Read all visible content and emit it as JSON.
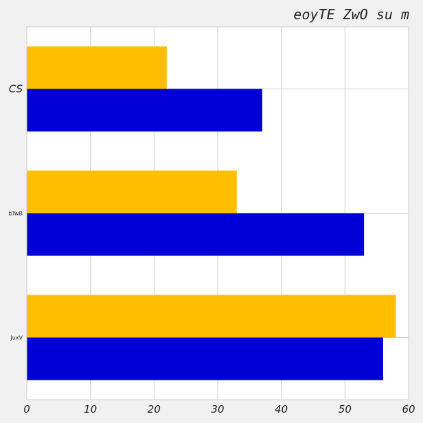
{
  "chart_data": {
    "type": "bar",
    "orientation": "horizontal",
    "title": "eoyTE ZwO su m",
    "xlabel": "",
    "ylabel": "",
    "categories": [
      "CS",
      "bTwB",
      "JuxV"
    ],
    "series": [
      {
        "values": [
          22,
          33,
          58
        ],
        "color": "#ffbf00"
      },
      {
        "values": [
          37,
          53,
          56
        ],
        "color": "#0000d6"
      }
    ],
    "xlim": [
      0,
      60
    ],
    "xticks": [
      0,
      10,
      20,
      30,
      40,
      50,
      60
    ],
    "grid": true
  }
}
